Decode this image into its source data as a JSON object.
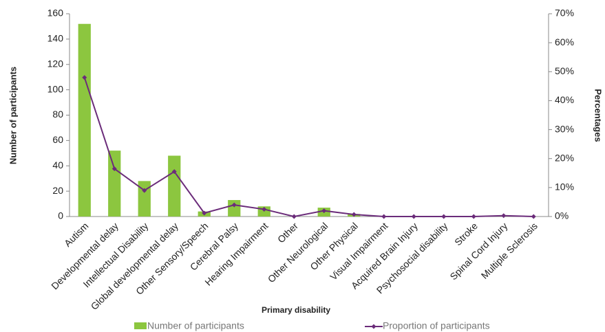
{
  "chart_data": {
    "type": "bar",
    "x_label": "Primary disability",
    "y_label": "Number of participants",
    "y2_label": "Percentages",
    "categories": [
      "Autism",
      "Developmental delay",
      "Intellectual Disability",
      "Global developmental delay",
      "Other Sensory/Speech",
      "Cerebral Palsy",
      "Hearing Impairment",
      "Other",
      "Other Neurological",
      "Other Physical",
      "Visual Impairment",
      "Acquired Brain Injury",
      "Psychosocial disability",
      "Stroke",
      "Spinal Cord Injury",
      "Multiple Sclerosis"
    ],
    "series": [
      {
        "name": "Number of participants",
        "color": "#8cc63f",
        "values": [
          152,
          52,
          28,
          48,
          4,
          13,
          8,
          0,
          7,
          2,
          0,
          0,
          0,
          0,
          1,
          0
        ]
      },
      {
        "name": "Proportion of participants",
        "color": "#6b2c7a",
        "type": "line",
        "axis": "y2",
        "values": [
          48,
          16.5,
          9,
          15.5,
          1.2,
          4,
          2.5,
          0,
          2,
          0.7,
          0,
          0,
          0,
          0,
          0.3,
          0
        ]
      }
    ],
    "ylim": [
      0,
      160
    ],
    "yticks": [
      0,
      20,
      40,
      60,
      80,
      100,
      120,
      140,
      160
    ],
    "y2lim": [
      0,
      70
    ],
    "y2ticks": [
      {
        "value": 0,
        "label": "0%"
      },
      {
        "value": 10,
        "label": "10%"
      },
      {
        "value": 20,
        "label": "20%"
      },
      {
        "value": 30,
        "label": "30%"
      },
      {
        "value": 40,
        "label": "40%"
      },
      {
        "value": 50,
        "label": "50%"
      },
      {
        "value": 60,
        "label": "60%"
      },
      {
        "value": 70,
        "label": "70%"
      }
    ],
    "grid": false,
    "legend": "bottom"
  }
}
